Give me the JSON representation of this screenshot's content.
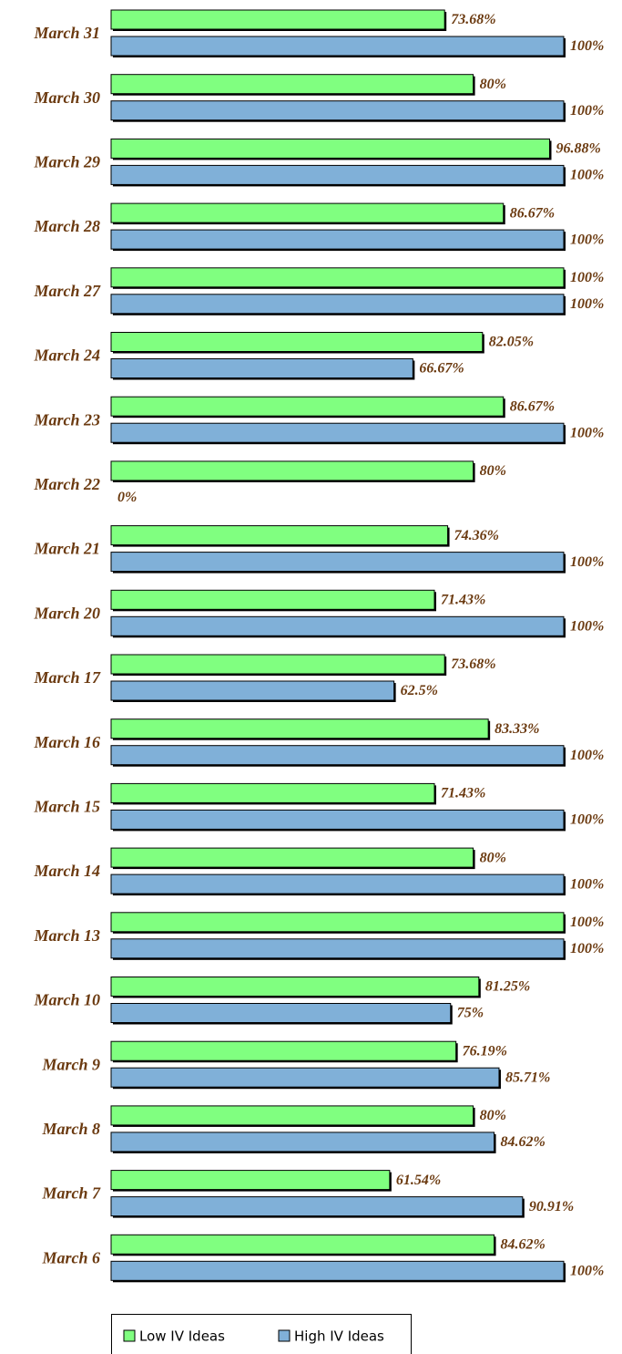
{
  "chart_data": {
    "type": "hbar",
    "categories": [
      "March 31",
      "March 30",
      "March 29",
      "March 28",
      "March 27",
      "March 24",
      "March 23",
      "March 22",
      "March 21",
      "March 20",
      "March 17",
      "March 16",
      "March 15",
      "March 14",
      "March 13",
      "March 10",
      "March 9",
      "March 8",
      "March 7",
      "March 6"
    ],
    "xlim": [
      0,
      100
    ],
    "legend": "bottom",
    "series": [
      {
        "name": "Low IV Ideas",
        "color": "#80ff80",
        "values": [
          73.68,
          80,
          96.88,
          86.67,
          100,
          82.05,
          86.67,
          80,
          74.36,
          71.43,
          73.68,
          83.33,
          71.43,
          80,
          100,
          81.25,
          76.19,
          80,
          61.54,
          84.62
        ],
        "value_labels": [
          "73.68%",
          "80%",
          "96.88%",
          "86.67%",
          "100%",
          "82.05%",
          "86.67%",
          "80%",
          "74.36%",
          "71.43%",
          "73.68%",
          "83.33%",
          "71.43%",
          "80%",
          "100%",
          "81.25%",
          "76.19%",
          "80%",
          "61.54%",
          "84.62%"
        ]
      },
      {
        "name": "High IV Ideas",
        "color": "#80b0d8",
        "values": [
          100,
          100,
          100,
          100,
          100,
          66.67,
          100,
          0,
          100,
          100,
          62.5,
          100,
          100,
          100,
          100,
          75,
          85.71,
          84.62,
          90.91,
          100
        ],
        "value_labels": [
          "100%",
          "100%",
          "100%",
          "100%",
          "100%",
          "66.67%",
          "100%",
          "0%",
          "100%",
          "100%",
          "62.5%",
          "100%",
          "100%",
          "100%",
          "100%",
          "75%",
          "85.71%",
          "84.62%",
          "90.91%",
          "100%"
        ]
      }
    ]
  }
}
